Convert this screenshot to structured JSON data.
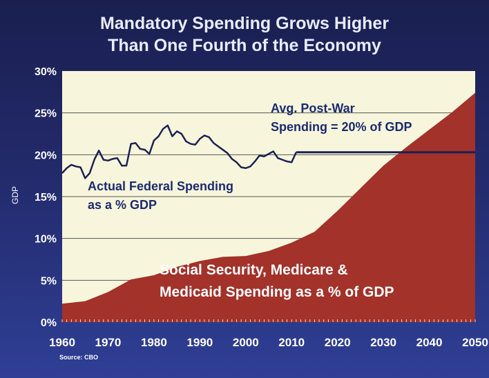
{
  "title_lines": [
    "Mandatory Spending Grows Higher",
    "Than One Fourth of the Economy"
  ],
  "source": "Source: CBO",
  "colors": {
    "plot_bg": "#f7f6dc",
    "area_fill": "#a2322a",
    "spending_line": "#1c2052",
    "avg_line": "#1c2052",
    "grid": "#555555"
  },
  "chart_data": {
    "type": "area",
    "title": "Mandatory Spending Grows Higher Than One Fourth of the Economy",
    "xlabel": "",
    "ylabel": "GDP",
    "xlim": [
      1960,
      2050
    ],
    "ylim": [
      0,
      30
    ],
    "y_ticks": [
      "0%",
      "5%",
      "10%",
      "15%",
      "20%",
      "25%",
      "30%"
    ],
    "x_ticks": [
      "1960",
      "1970",
      "1980",
      "1990",
      "2000",
      "2010",
      "2020",
      "2030",
      "2040",
      "2050"
    ],
    "grid": true,
    "annotations": [
      {
        "lines": [
          "Avg. Post-War",
          "Spending = 20% of GDP"
        ]
      },
      {
        "lines": [
          "Actual Federal Spending",
          "as a % GDP"
        ]
      },
      {
        "lines": [
          "Social Security, Medicare &",
          "Medicaid Spending as a % of GDP"
        ]
      }
    ],
    "series": [
      {
        "kind": "line",
        "x": [
          1960,
          1961,
          1962,
          1963,
          1964,
          1965,
          1966,
          1967,
          1968,
          1969,
          1970,
          1971,
          1972,
          1973,
          1974,
          1975,
          1976,
          1977,
          1978,
          1979,
          1980,
          1981,
          1982,
          1983,
          1984,
          1985,
          1986,
          1987,
          1988,
          1989,
          1990,
          1991,
          1992,
          1993,
          1994,
          1995,
          1996,
          1997,
          1998,
          1999,
          2000,
          2001,
          2002,
          2003,
          2004,
          2005,
          2006,
          2007,
          2008,
          2009,
          2010,
          2011
        ],
        "values": [
          17.8,
          18.4,
          18.8,
          18.6,
          18.5,
          17.2,
          17.8,
          19.4,
          20.5,
          19.4,
          19.3,
          19.5,
          19.6,
          18.7,
          18.7,
          21.3,
          21.4,
          20.7,
          20.6,
          20.1,
          21.7,
          22.2,
          23.1,
          23.5,
          22.2,
          22.8,
          22.5,
          21.6,
          21.3,
          21.2,
          21.9,
          22.3,
          22.1,
          21.4,
          21.0,
          20.6,
          20.2,
          19.5,
          19.1,
          18.5,
          18.4,
          18.6,
          19.2,
          19.9,
          19.8,
          20.1,
          20.4,
          19.6,
          19.4,
          19.2,
          19.1,
          20.3
        ]
      },
      {
        "kind": "line",
        "x": [
          2011,
          2050
        ],
        "values": [
          20.3,
          20.3
        ]
      },
      {
        "kind": "area",
        "x": [
          1960,
          1965,
          1970,
          1975,
          1980,
          1985,
          1990,
          1995,
          2000,
          2005,
          2010,
          2015,
          2020,
          2025,
          2030,
          2035,
          2040,
          2045,
          2050
        ],
        "values": [
          2.2,
          2.5,
          3.6,
          5.1,
          5.6,
          6.6,
          7.3,
          7.8,
          7.9,
          8.5,
          9.5,
          10.8,
          13.3,
          16.0,
          18.7,
          20.9,
          23.0,
          25.1,
          27.4
        ]
      }
    ]
  }
}
